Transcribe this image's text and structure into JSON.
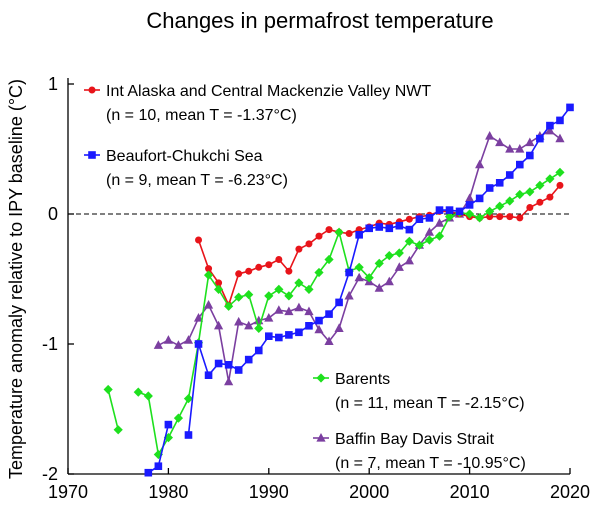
{
  "chart_data": {
    "type": "line",
    "title": "Changes in permafrost temperature",
    "xlabel": "",
    "ylabel": "Temperature anomaly relative to IPY baseline (°C)",
    "xlim": [
      1970,
      2020
    ],
    "ylim": [
      -2,
      1
    ],
    "xticks": [
      1970,
      1980,
      1990,
      2000,
      2010,
      2020
    ],
    "yticks": [
      -2,
      -1,
      0,
      1
    ],
    "zero_line": "dashed",
    "grid": false,
    "series": [
      {
        "name": "Int Alaska and Central Mackenzie Valley NWT",
        "stats": "(n = 10, mean T = -1.37°C)",
        "color": "#e8141a",
        "marker": "circle",
        "points": [
          [
            1983,
            -0.2
          ],
          [
            1984,
            -0.42
          ],
          [
            1985,
            -0.53
          ],
          [
            1986,
            -0.7
          ],
          [
            1987,
            -0.46
          ],
          [
            1988,
            -0.44
          ],
          [
            1989,
            -0.41
          ],
          [
            1990,
            -0.39
          ],
          [
            1991,
            -0.35
          ],
          [
            1992,
            -0.44
          ],
          [
            1993,
            -0.27
          ],
          [
            1994,
            -0.23
          ],
          [
            1995,
            -0.17
          ],
          [
            1996,
            -0.12
          ],
          [
            1997,
            -0.14
          ],
          [
            1998,
            -0.15
          ],
          [
            1999,
            -0.12
          ],
          [
            2000,
            -0.1
          ],
          [
            2001,
            -0.07
          ],
          [
            2002,
            -0.08
          ],
          [
            2003,
            -0.06
          ],
          [
            2004,
            -0.04
          ],
          [
            2005,
            -0.02
          ],
          [
            2006,
            -0.01
          ],
          [
            2007,
            0.02
          ],
          [
            2008,
            0.02
          ],
          [
            2009,
            0.0
          ],
          [
            2010,
            -0.02
          ],
          [
            2011,
            -0.03
          ],
          [
            2012,
            -0.02
          ],
          [
            2013,
            -0.02
          ],
          [
            2014,
            -0.02
          ],
          [
            2015,
            -0.03
          ],
          [
            2016,
            0.05
          ],
          [
            2017,
            0.09
          ],
          [
            2018,
            0.13
          ],
          [
            2019,
            0.22
          ]
        ]
      },
      {
        "name": "Beaufort-Chukchi Sea",
        "stats": "(n = 9, mean T = -6.23°C)",
        "color": "#1a1aff",
        "marker": "square",
        "points": [
          [
            1978,
            -1.99
          ],
          [
            1979,
            -1.94
          ],
          [
            1980,
            -1.62
          ],
          [
            1982,
            -1.7
          ],
          [
            1983,
            -1.0
          ],
          [
            1984,
            -1.24
          ],
          [
            1985,
            -1.15
          ],
          [
            1986,
            -1.16
          ],
          [
            1987,
            -1.2
          ],
          [
            1988,
            -1.12
          ],
          [
            1989,
            -1.05
          ],
          [
            1990,
            -0.94
          ],
          [
            1991,
            -0.95
          ],
          [
            1992,
            -0.93
          ],
          [
            1993,
            -0.91
          ],
          [
            1994,
            -0.86
          ],
          [
            1995,
            -0.82
          ],
          [
            1996,
            -0.77
          ],
          [
            1997,
            -0.68
          ],
          [
            1998,
            -0.45
          ],
          [
            1999,
            -0.16
          ],
          [
            2000,
            -0.11
          ],
          [
            2001,
            -0.1
          ],
          [
            2002,
            -0.11
          ],
          [
            2003,
            -0.09
          ],
          [
            2004,
            -0.12
          ],
          [
            2005,
            -0.04
          ],
          [
            2006,
            -0.03
          ],
          [
            2007,
            0.03
          ],
          [
            2008,
            0.03
          ],
          [
            2009,
            0.02
          ],
          [
            2010,
            0.07
          ],
          [
            2011,
            0.12
          ],
          [
            2012,
            0.2
          ],
          [
            2013,
            0.24
          ],
          [
            2014,
            0.3
          ],
          [
            2015,
            0.38
          ],
          [
            2016,
            0.45
          ],
          [
            2017,
            0.58
          ],
          [
            2018,
            0.68
          ],
          [
            2019,
            0.72
          ],
          [
            2020,
            0.82
          ]
        ]
      },
      {
        "name": "Barents",
        "stats": "(n = 11, mean T = -2.15°C)",
        "color": "#1ee01e",
        "marker": "diamond",
        "points": [
          [
            1974,
            -1.35
          ],
          [
            1975,
            -1.66
          ],
          [
            1977,
            -1.37
          ],
          [
            1978,
            -1.4
          ],
          [
            1979,
            -1.85
          ],
          [
            1980,
            -1.72
          ],
          [
            1981,
            -1.57
          ],
          [
            1982,
            -1.42
          ],
          [
            1983,
            -0.99
          ],
          [
            1984,
            -0.47
          ],
          [
            1985,
            -0.58
          ],
          [
            1986,
            -0.71
          ],
          [
            1987,
            -0.64
          ],
          [
            1988,
            -0.62
          ],
          [
            1989,
            -0.88
          ],
          [
            1990,
            -0.63
          ],
          [
            1991,
            -0.58
          ],
          [
            1992,
            -0.63
          ],
          [
            1993,
            -0.53
          ],
          [
            1994,
            -0.58
          ],
          [
            1995,
            -0.45
          ],
          [
            1996,
            -0.35
          ],
          [
            1997,
            -0.14
          ],
          [
            1998,
            -0.44
          ],
          [
            1999,
            -0.41
          ],
          [
            2000,
            -0.49
          ],
          [
            2001,
            -0.38
          ],
          [
            2002,
            -0.32
          ],
          [
            2003,
            -0.3
          ],
          [
            2004,
            -0.21
          ],
          [
            2005,
            -0.24
          ],
          [
            2006,
            -0.2
          ],
          [
            2007,
            -0.17
          ],
          [
            2008,
            -0.02
          ],
          [
            2009,
            0.01
          ],
          [
            2010,
            0.0
          ],
          [
            2011,
            -0.03
          ],
          [
            2012,
            0.02
          ],
          [
            2013,
            0.06
          ],
          [
            2014,
            0.1
          ],
          [
            2015,
            0.15
          ],
          [
            2016,
            0.17
          ],
          [
            2017,
            0.22
          ],
          [
            2018,
            0.27
          ],
          [
            2019,
            0.32
          ]
        ]
      },
      {
        "name": "Baffin Bay Davis Strait",
        "stats": "(n = 7, mean T = -10.95°C)",
        "color": "#7b3fa0",
        "marker": "triangle",
        "points": [
          [
            1979,
            -1.01
          ],
          [
            1980,
            -0.97
          ],
          [
            1981,
            -1.01
          ],
          [
            1982,
            -0.97
          ],
          [
            1983,
            -0.8
          ],
          [
            1984,
            -0.7
          ],
          [
            1985,
            -0.86
          ],
          [
            1986,
            -1.29
          ],
          [
            1987,
            -0.83
          ],
          [
            1988,
            -0.86
          ],
          [
            1989,
            -0.82
          ],
          [
            1990,
            -0.8
          ],
          [
            1991,
            -0.74
          ],
          [
            1992,
            -0.75
          ],
          [
            1993,
            -0.72
          ],
          [
            1994,
            -0.75
          ],
          [
            1995,
            -0.89
          ],
          [
            1996,
            -0.98
          ],
          [
            1997,
            -0.88
          ],
          [
            1998,
            -0.63
          ],
          [
            1999,
            -0.49
          ],
          [
            2000,
            -0.52
          ],
          [
            2001,
            -0.57
          ],
          [
            2002,
            -0.52
          ],
          [
            2003,
            -0.41
          ],
          [
            2004,
            -0.36
          ],
          [
            2005,
            -0.24
          ],
          [
            2006,
            -0.14
          ],
          [
            2007,
            -0.07
          ],
          [
            2008,
            -0.03
          ],
          [
            2009,
            0.0
          ],
          [
            2010,
            0.12
          ],
          [
            2011,
            0.38
          ],
          [
            2012,
            0.6
          ],
          [
            2013,
            0.55
          ],
          [
            2014,
            0.5
          ],
          [
            2015,
            0.5
          ],
          [
            2016,
            0.55
          ],
          [
            2017,
            0.6
          ],
          [
            2018,
            0.64
          ],
          [
            2019,
            0.58
          ]
        ]
      }
    ]
  }
}
